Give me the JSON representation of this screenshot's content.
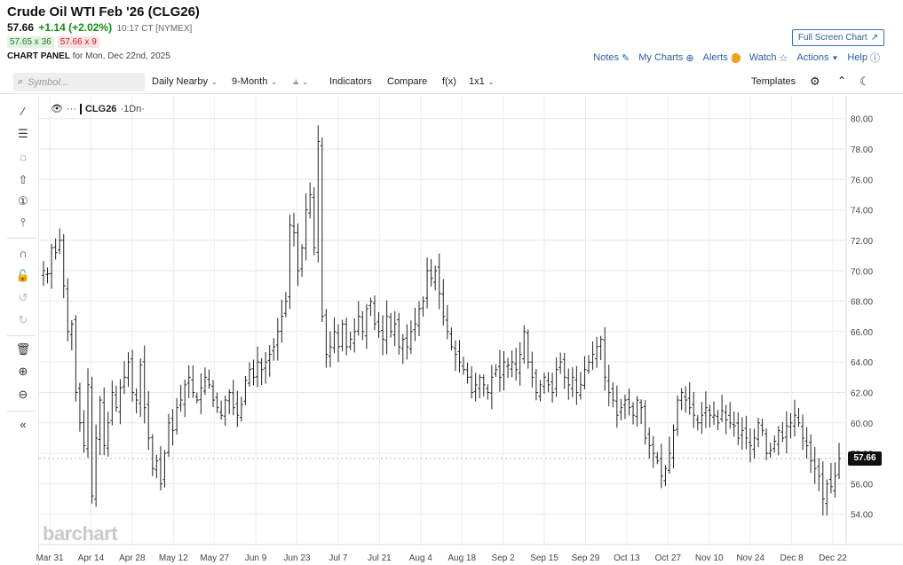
{
  "header": {
    "title": "Crude Oil WTI Feb '26 (CLG26)",
    "last": "57.66",
    "change": "+1.14 (+2.02%)",
    "time": "10:17 CT [NYMEX]",
    "bid": "57.65 x 36",
    "ask": "57.66 x 9",
    "full_screen": "Full Screen Chart",
    "panel_label": "CHART PANEL",
    "panel_date": "for Mon, Dec 22nd, 2025"
  },
  "links": {
    "notes": "Notes",
    "my_charts": "My Charts",
    "alerts": "Alerts",
    "watch": "Watch",
    "actions": "Actions",
    "help": "Help"
  },
  "toolbar": {
    "search_placeholder": "Symbol...",
    "daily_nearby": "Daily Nearby",
    "nine_month": "9-Month",
    "indicators": "Indicators",
    "compare": "Compare",
    "fx": "f(x)",
    "layout": "1x1",
    "templates": "Templates"
  },
  "legend": {
    "symbol": "CLG26",
    "interval": "·1Dn·"
  },
  "price_tag": "57.66",
  "logo": "barchart",
  "chart_data": {
    "type": "ohlc",
    "y_ticks": [
      54,
      56,
      58,
      60,
      62,
      64,
      66,
      68,
      70,
      72,
      74,
      76,
      78,
      80
    ],
    "y_tick_labels": [
      "54.00",
      "56.00",
      "58.00",
      "60.00",
      "62.00",
      "64.00",
      "66.00",
      "68.00",
      "70.00",
      "72.00",
      "74.00",
      "76.00",
      "78.00",
      "80.00"
    ],
    "ylim": [
      52.0,
      81.5
    ],
    "x_labels": [
      "Mar 31",
      "Apr 14",
      "Apr 28",
      "May 12",
      "May 27",
      "Jun 9",
      "Jun 23",
      "Jul 7",
      "Jul 21",
      "Aug 4",
      "Aug 18",
      "Sep 2",
      "Sep 15",
      "Sep 29",
      "Oct 13",
      "Oct 27",
      "Nov 10",
      "Nov 24",
      "Dec 8",
      "Dec 22"
    ],
    "closes": [
      70.0,
      69.8,
      71.5,
      71.2,
      72.0,
      69.0,
      66.0,
      66.5,
      62.0,
      60.0,
      58.5,
      62.5,
      55.2,
      59.0,
      61.5,
      58.5,
      60.0,
      62.0,
      61.0,
      62.3,
      63.0,
      64.0,
      62.0,
      61.5,
      63.8,
      61.0,
      59.0,
      57.0,
      57.5,
      56.0,
      58.0,
      60.0,
      59.5,
      61.0,
      61.5,
      62.5,
      63.0,
      62.0,
      61.5,
      62.3,
      63.0,
      62.5,
      61.5,
      61.0,
      60.5,
      61.5,
      62.0,
      61.0,
      60.5,
      61.2,
      62.8,
      63.5,
      63.0,
      64.0,
      63.5,
      64.0,
      64.5,
      65.0,
      66.0,
      67.0,
      68.0,
      73.0,
      72.5,
      70.0,
      71.5,
      74.0,
      75.0,
      71.5,
      78.5,
      67.0,
      64.5,
      65.0,
      66.0,
      65.0,
      66.5,
      65.0,
      65.5,
      66.0,
      67.0,
      66.0,
      67.5,
      68.0,
      66.5,
      66.0,
      65.5,
      67.0,
      66.0,
      66.5,
      65.0,
      65.5,
      65.0,
      66.0,
      66.5,
      67.5,
      68.0,
      70.0,
      69.5,
      70.0,
      68.5,
      67.0,
      66.0,
      65.0,
      64.5,
      64.0,
      63.5,
      63.0,
      62.0,
      62.5,
      63.0,
      62.5,
      62.0,
      63.0,
      63.5,
      63.0,
      64.0,
      63.8,
      64.0,
      63.5,
      64.5,
      66.0,
      64.0,
      63.0,
      62.0,
      62.5,
      63.0,
      62.5,
      62.0,
      63.5,
      64.0,
      63.0,
      62.5,
      63.0,
      62.0,
      62.5,
      63.5,
      64.0,
      64.5,
      65.0,
      65.5,
      63.0,
      62.0,
      61.5,
      60.5,
      61.0,
      61.5,
      61.0,
      60.5,
      61.5,
      61.0,
      59.0,
      58.5,
      58.0,
      57.5,
      56.5,
      57.0,
      58.0,
      59.5,
      61.5,
      62.0,
      61.5,
      61.0,
      60.5,
      60.0,
      60.5,
      61.0,
      60.5,
      60.5,
      60.0,
      60.8,
      60.2,
      60.0,
      59.8,
      59.0,
      59.5,
      59.0,
      58.5,
      59.0,
      60.0,
      59.5,
      58.0,
      58.2,
      58.8,
      59.5,
      59.0,
      59.8,
      60.0,
      60.5,
      60.0,
      59.0,
      58.5,
      57.5,
      57.0,
      56.5,
      55.0,
      56.0,
      55.8,
      56.5,
      57.66
    ]
  }
}
